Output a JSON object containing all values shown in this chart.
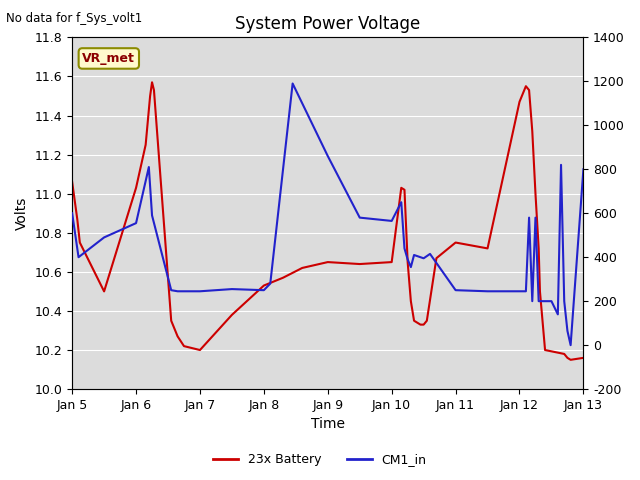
{
  "title": "System Power Voltage",
  "top_left_text": "No data for f_Sys_volt1",
  "xlabel": "Time",
  "ylabel_left": "Volts",
  "ylim_left": [
    10.0,
    11.8
  ],
  "ylim_right": [
    -200,
    1400
  ],
  "background_color": "#dcdcdc",
  "figure_bg": "#ffffff",
  "annotation_box": "VR_met",
  "red_series_label": "23x Battery",
  "blue_series_label": "CM1_in",
  "red_color": "#cc0000",
  "blue_color": "#2222cc",
  "red_x": [
    5.0,
    5.08,
    5.12,
    5.5,
    6.0,
    6.15,
    6.22,
    6.25,
    6.28,
    6.55,
    6.65,
    6.75,
    7.0,
    7.5,
    8.0,
    8.3,
    8.6,
    9.0,
    9.5,
    10.0,
    10.15,
    10.2,
    10.25,
    10.3,
    10.35,
    10.45,
    10.5,
    10.55,
    10.7,
    11.0,
    11.5,
    12.0,
    12.1,
    12.15,
    12.2,
    12.25,
    12.3,
    12.32,
    12.4,
    12.7,
    12.75,
    12.8,
    13.0
  ],
  "red_y": [
    11.06,
    10.87,
    10.75,
    10.5,
    11.03,
    11.25,
    11.5,
    11.57,
    11.53,
    10.35,
    10.27,
    10.22,
    10.2,
    10.38,
    10.53,
    10.57,
    10.62,
    10.65,
    10.64,
    10.65,
    11.03,
    11.02,
    10.65,
    10.45,
    10.35,
    10.33,
    10.33,
    10.35,
    10.67,
    10.75,
    10.72,
    11.47,
    11.55,
    11.53,
    11.32,
    11.0,
    10.72,
    10.5,
    10.2,
    10.18,
    10.16,
    10.15,
    10.16
  ],
  "blue_x": [
    5.0,
    5.1,
    5.5,
    6.0,
    6.2,
    6.25,
    6.55,
    6.65,
    7.0,
    7.5,
    8.0,
    8.1,
    8.45,
    9.0,
    9.5,
    10.0,
    10.15,
    10.2,
    10.25,
    10.3,
    10.35,
    10.5,
    10.6,
    11.0,
    11.5,
    12.0,
    12.1,
    12.15,
    12.2,
    12.25,
    12.3,
    12.5,
    12.6,
    12.65,
    12.7,
    12.75,
    12.8,
    13.0
  ],
  "blue_y": [
    600,
    400,
    490,
    555,
    810,
    590,
    250,
    245,
    245,
    255,
    250,
    280,
    1190,
    860,
    580,
    565,
    650,
    440,
    390,
    355,
    410,
    395,
    415,
    250,
    245,
    245,
    245,
    580,
    200,
    580,
    200,
    200,
    140,
    820,
    200,
    65,
    0,
    800
  ],
  "xtick_labels": [
    "Jan 5",
    "Jan 6",
    "Jan 7",
    "Jan 8",
    "Jan 9",
    "Jan 10",
    "Jan 11",
    "Jan 12",
    "Jan 13"
  ],
  "xtick_positions": [
    5,
    6,
    7,
    8,
    9,
    10,
    11,
    12,
    13
  ],
  "yticks_left": [
    10.0,
    10.2,
    10.4,
    10.6,
    10.8,
    11.0,
    11.2,
    11.4,
    11.6,
    11.8
  ],
  "yticks_right": [
    -200,
    0,
    200,
    400,
    600,
    800,
    1000,
    1200,
    1400
  ],
  "grid_color": "#ffffff",
  "line_width": 1.5,
  "tick_fontsize": 9,
  "title_fontsize": 12,
  "label_fontsize": 10
}
